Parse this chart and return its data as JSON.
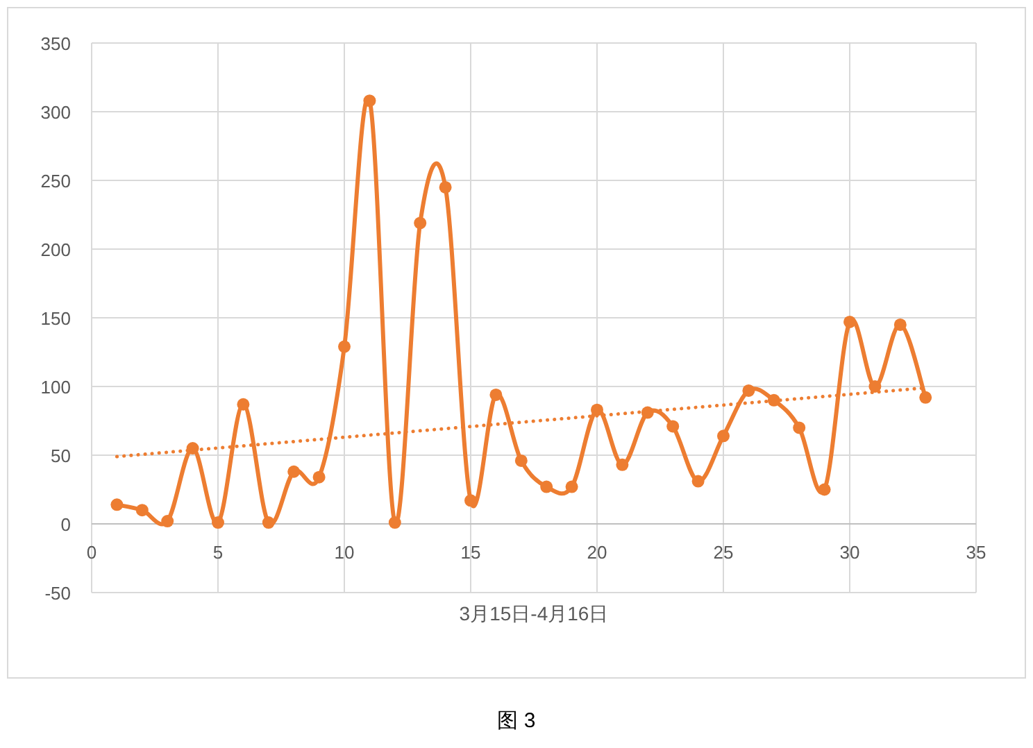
{
  "chart_data": {
    "type": "line",
    "xlabel": "3月15日-4月16日",
    "annotations": [
      "图 3"
    ],
    "x": [
      1,
      2,
      3,
      4,
      5,
      6,
      7,
      8,
      9,
      10,
      11,
      12,
      13,
      14,
      15,
      16,
      17,
      18,
      19,
      20,
      21,
      22,
      23,
      24,
      25,
      26,
      27,
      28,
      29,
      30,
      31,
      32,
      33
    ],
    "series": [
      {
        "color": "#ed7d31",
        "marker": "circle",
        "line_style": "solid",
        "values": [
          14,
          10,
          2,
          55,
          1,
          87,
          1,
          38,
          34,
          129,
          308,
          1,
          219,
          245,
          17,
          94,
          46,
          27,
          27,
          83,
          43,
          81,
          71,
          31,
          64,
          97,
          90,
          70,
          25,
          147,
          100,
          145,
          92
        ]
      },
      {
        "type": "line",
        "color": "#ed7d31",
        "marker": "none",
        "line_style": "dotted",
        "x": [
          1,
          33
        ],
        "values": [
          49,
          99
        ]
      }
    ],
    "xlim": [
      0,
      35
    ],
    "ylim": [
      -50,
      350
    ],
    "xticks": [
      0,
      5,
      10,
      15,
      20,
      25,
      30,
      35
    ],
    "yticks": [
      -50,
      0,
      50,
      100,
      150,
      200,
      250,
      300,
      350
    ],
    "grid": true
  }
}
